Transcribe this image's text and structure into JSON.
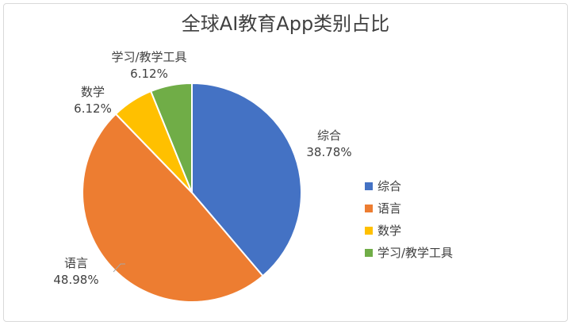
{
  "chart_data": {
    "type": "pie",
    "title": "全球AI教育App类别占比",
    "legend_position": "right",
    "slices": [
      {
        "label": "综合",
        "value": 38.78,
        "value_label": "38.78%",
        "color": "#4472C4"
      },
      {
        "label": "语言",
        "value": 48.98,
        "value_label": "48.98%",
        "color": "#ED7D31"
      },
      {
        "label": "数学",
        "value": 6.12,
        "value_label": "6.12%",
        "color": "#FFC000"
      },
      {
        "label": "学习/教学工具",
        "value": 6.12,
        "value_label": "6.12%",
        "color": "#70AD47"
      }
    ]
  }
}
